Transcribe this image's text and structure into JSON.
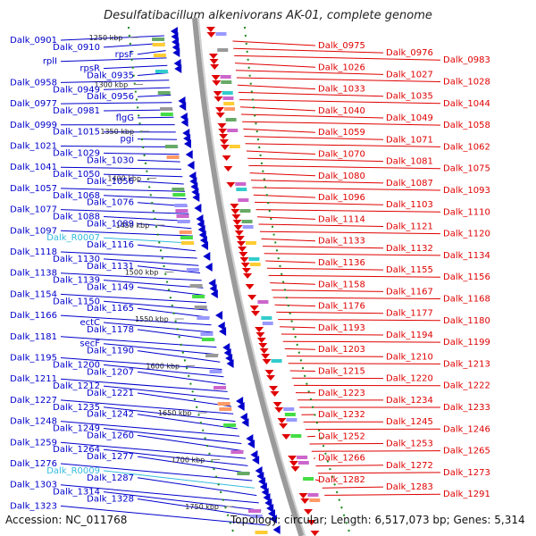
{
  "title": "Desulfatibacillum alkenivorans AK-01, complete genome",
  "footer": {
    "accession": "Accession: NC_011768",
    "topology": "Topology: circular; Length: 6,517,073 bp; Genes: 5,314"
  },
  "colors": {
    "left": "#0000cc",
    "right": "#e00000",
    "rna": "#33bbdd",
    "backbone": "#9a9a9a",
    "dots": "#1a8a1a"
  },
  "kbp_ticks": [
    "1250 kbp",
    "1300 kbp",
    "1350 kbp",
    "1400 kbp",
    "1450 kbp",
    "1500 kbp",
    "1550 kbp",
    "1600 kbp",
    "1650 kbp",
    "1700 kbp",
    "1750 kbp"
  ],
  "left_labels": [
    {
      "t": "Dalk_0901",
      "k": "g"
    },
    {
      "t": "Dalk_0910",
      "k": "g"
    },
    {
      "t": "rpsF",
      "k": "g"
    },
    {
      "t": "rplI",
      "k": "g"
    },
    {
      "t": "rpsR",
      "k": "g"
    },
    {
      "t": "Dalk_0935",
      "k": "g"
    },
    {
      "t": "Dalk_0958",
      "k": "g"
    },
    {
      "t": "Dalk_0949",
      "k": "g"
    },
    {
      "t": "Dalk_0956",
      "k": "g"
    },
    {
      "t": "Dalk_0977",
      "k": "g"
    },
    {
      "t": "Dalk_0981",
      "k": "g"
    },
    {
      "t": "flgG",
      "k": "g"
    },
    {
      "t": "Dalk_0999",
      "k": "g"
    },
    {
      "t": "Dalk_1015",
      "k": "g"
    },
    {
      "t": "pgi",
      "k": "g"
    },
    {
      "t": "Dalk_1021",
      "k": "g"
    },
    {
      "t": "Dalk_1029",
      "k": "g"
    },
    {
      "t": "Dalk_1030",
      "k": "g"
    },
    {
      "t": "Dalk_1041",
      "k": "g"
    },
    {
      "t": "Dalk_1050",
      "k": "g"
    },
    {
      "t": "Dalk_1056",
      "k": "g"
    },
    {
      "t": "Dalk_1057",
      "k": "g"
    },
    {
      "t": "Dalk_1068",
      "k": "g"
    },
    {
      "t": "Dalk_1076",
      "k": "g"
    },
    {
      "t": "Dalk_1077",
      "k": "g"
    },
    {
      "t": "Dalk_1088",
      "k": "g"
    },
    {
      "t": "Dalk_1089",
      "k": "g"
    },
    {
      "t": "Dalk_1097",
      "k": "g"
    },
    {
      "t": "Dalk_R0007",
      "k": "r"
    },
    {
      "t": "Dalk_1116",
      "k": "g"
    },
    {
      "t": "Dalk_1118",
      "k": "g"
    },
    {
      "t": "Dalk_1130",
      "k": "g"
    },
    {
      "t": "Dalk_1131",
      "k": "g"
    },
    {
      "t": "Dalk_1138",
      "k": "g"
    },
    {
      "t": "Dalk_1139",
      "k": "g"
    },
    {
      "t": "Dalk_1149",
      "k": "g"
    },
    {
      "t": "Dalk_1154",
      "k": "g"
    },
    {
      "t": "Dalk_1150",
      "k": "g"
    },
    {
      "t": "Dalk_1165",
      "k": "g"
    },
    {
      "t": "Dalk_1166",
      "k": "g"
    },
    {
      "t": "ectC",
      "k": "g"
    },
    {
      "t": "Dalk_1178",
      "k": "g"
    },
    {
      "t": "Dalk_1181",
      "k": "g"
    },
    {
      "t": "secF",
      "k": "g"
    },
    {
      "t": "Dalk_1190",
      "k": "g"
    },
    {
      "t": "Dalk_1195",
      "k": "g"
    },
    {
      "t": "Dalk_1200",
      "k": "g"
    },
    {
      "t": "Dalk_1207",
      "k": "g"
    },
    {
      "t": "Dalk_1211",
      "k": "g"
    },
    {
      "t": "Dalk_1212",
      "k": "g"
    },
    {
      "t": "Dalk_1221",
      "k": "g"
    },
    {
      "t": "Dalk_1227",
      "k": "g"
    },
    {
      "t": "Dalk_1235",
      "k": "g"
    },
    {
      "t": "Dalk_1242",
      "k": "g"
    },
    {
      "t": "Dalk_1248",
      "k": "g"
    },
    {
      "t": "Dalk_1249",
      "k": "g"
    },
    {
      "t": "Dalk_1260",
      "k": "g"
    },
    {
      "t": "Dalk_1259",
      "k": "g"
    },
    {
      "t": "Dalk_1264",
      "k": "g"
    },
    {
      "t": "Dalk_1277",
      "k": "g"
    },
    {
      "t": "Dalk_1276",
      "k": "g"
    },
    {
      "t": "Dalk_R0009",
      "k": "r"
    },
    {
      "t": "Dalk_1287",
      "k": "g"
    },
    {
      "t": "Dalk_1303",
      "k": "g"
    },
    {
      "t": "Dalk_1314",
      "k": "g"
    },
    {
      "t": "Dalk_1328",
      "k": "g"
    },
    {
      "t": "Dalk_1323",
      "k": "g"
    }
  ],
  "right_labels": [
    "Dalk_0975",
    "Dalk_0976",
    "Dalk_0983",
    "Dalk_1026",
    "Dalk_1027",
    "Dalk_1028",
    "Dalk_1033",
    "Dalk_1035",
    "Dalk_1044",
    "Dalk_1040",
    "Dalk_1049",
    "Dalk_1058",
    "Dalk_1059",
    "Dalk_1071",
    "Dalk_1062",
    "Dalk_1070",
    "Dalk_1081",
    "Dalk_1075",
    "Dalk_1080",
    "Dalk_1087",
    "Dalk_1093",
    "Dalk_1096",
    "Dalk_1103",
    "Dalk_1110",
    "Dalk_1114",
    "Dalk_1121",
    "Dalk_1120",
    "Dalk_1133",
    "Dalk_1132",
    "Dalk_1134",
    "Dalk_1136",
    "Dalk_1155",
    "Dalk_1156",
    "Dalk_1158",
    "Dalk_1167",
    "Dalk_1168",
    "Dalk_1176",
    "Dalk_1177",
    "Dalk_1180",
    "Dalk_1193",
    "Dalk_1194",
    "Dalk_1199",
    "Dalk_1203",
    "Dalk_1210",
    "Dalk_1213",
    "Dalk_1215",
    "Dalk_1220",
    "Dalk_1222",
    "Dalk_1223",
    "Dalk_1234",
    "Dalk_1233",
    "Dalk_1232",
    "Dalk_1245",
    "Dalk_1246",
    "Dalk_1252",
    "Dalk_1253",
    "Dalk_1265",
    "Dalk_1266",
    "Dalk_1272",
    "Dalk_1273",
    "Dalk_1282",
    "Dalk_1283",
    "Dalk_1291"
  ]
}
